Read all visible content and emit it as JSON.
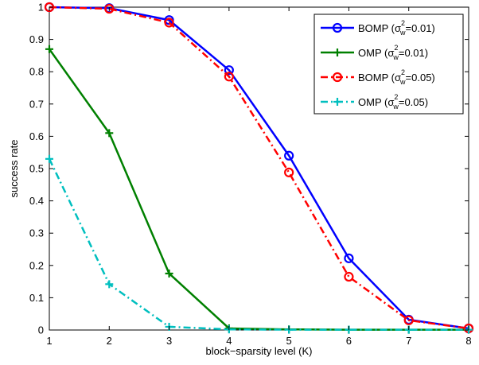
{
  "chart_data": {
    "type": "line",
    "title": "",
    "xlabel": "block−sparsity level (K)",
    "ylabel": "success rate",
    "xlim": [
      1,
      8
    ],
    "ylim": [
      0,
      1
    ],
    "x": [
      1,
      2,
      3,
      4,
      5,
      6,
      7,
      8
    ],
    "xticks": [
      "1",
      "2",
      "3",
      "4",
      "5",
      "6",
      "7",
      "8"
    ],
    "yticks": [
      "0",
      "0.1",
      "0.2",
      "0.3",
      "0.4",
      "0.5",
      "0.6",
      "0.7",
      "0.8",
      "0.9",
      "1"
    ],
    "grid": false,
    "legend_position": "top-right",
    "series": [
      {
        "name": "BOMP (σw2=0.01)",
        "legend": {
          "prefix": "BOMP (σ",
          "sup": "2",
          "sub": "w",
          "suffix": "=0.01)"
        },
        "values": [
          1.0,
          0.997,
          0.96,
          0.805,
          0.54,
          0.222,
          0.032,
          0.005
        ],
        "color": "#0000ff",
        "line": "solid",
        "marker": "circle"
      },
      {
        "name": "OMP (σw2=0.01)",
        "legend": {
          "prefix": "OMP (σ",
          "sup": "2",
          "sub": "w",
          "suffix": "=0.01)"
        },
        "values": [
          0.87,
          0.61,
          0.175,
          0.005,
          0.002,
          0.001,
          0.001,
          0.001
        ],
        "color": "#008000",
        "line": "solid",
        "marker": "plus"
      },
      {
        "name": "BOMP (σw2=0.05)",
        "legend": {
          "prefix": "BOMP (σ",
          "sup": "2",
          "sub": "w",
          "suffix": "=0.05)"
        },
        "values": [
          1.0,
          0.995,
          0.952,
          0.785,
          0.488,
          0.165,
          0.03,
          0.005
        ],
        "color": "#ff0000",
        "line": "dashdot",
        "marker": "circle"
      },
      {
        "name": "OMP (σw2=0.05)",
        "legend": {
          "prefix": "OMP (σ",
          "sup": "2",
          "sub": "w",
          "suffix": "=0.05)"
        },
        "values": [
          0.53,
          0.142,
          0.01,
          0.002,
          0.001,
          0.001,
          0.001,
          0.001
        ],
        "color": "#00bfbf",
        "line": "dashdot",
        "marker": "plus"
      }
    ]
  }
}
